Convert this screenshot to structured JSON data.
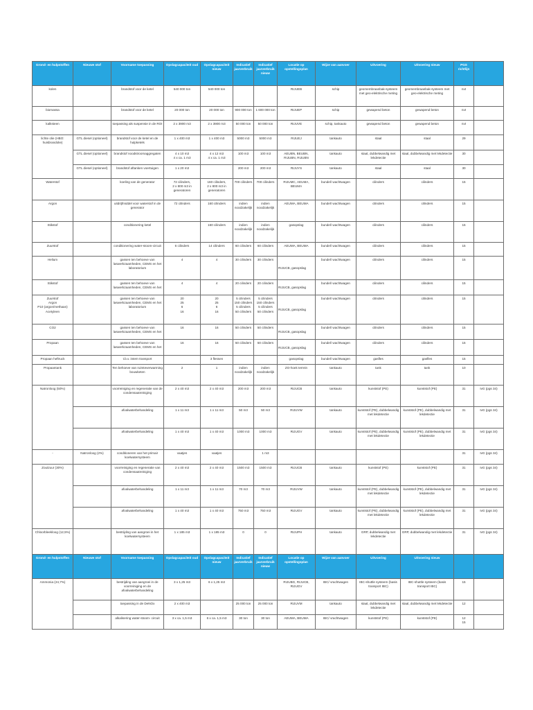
{
  "header": [
    "Grond- en hulpstoffen",
    "Nieuwe stof",
    "Voorname toepassing",
    "Opslagcapaciteit oud",
    "Opslagcapaciteit nieuw",
    "Indicatief jaarverbruik",
    "Indicatief jaarverbruik nieuw",
    "Locatie op opstellingsplan",
    "Wijze van aanvoer",
    "Uitvoering",
    "Uitvoering nieuw",
    "PGS richtlijn",
    ""
  ],
  "header2": [
    "Grond- en hulpstoffen",
    "Nieuwe stof",
    "Voorname toepassing",
    "Opslagcapaciteit oud",
    "Opslagcapaciteit nieuw",
    "Indicatief jaarverbruik",
    "Indicatief jaarverbruik nieuw",
    "Locatie op opstellingsplan",
    "Wijze van aanvoer",
    "Uitvoering",
    "Uitvoering nieuw",
    "",
    ""
  ],
  "header_color": "#27a6e0",
  "rows": [
    {
      "cells": [
        "kolen",
        "",
        "brandstof voor de ketel",
        "540 000 ton",
        "540 000 ton",
        "",
        "",
        "RIJUEB",
        "schip",
        "geomembraanbak-systeem met geo-elektrische meting",
        "geomembraanbak-systeem met geo-elektrische meting",
        "nvt",
        ""
      ]
    },
    {
      "cells": [
        "biomassa",
        "",
        "brandstof voor de ketel",
        "20 000 ton",
        "20 000 ton",
        "900 000 ton",
        "1 600 000 ton",
        "RIJUEP",
        "schip",
        "gewapend beton",
        "gewapend beton",
        "nvt",
        ""
      ]
    },
    {
      "cells": [
        "kalksteen",
        "",
        "toepassing als suspensie in de ROI",
        "2 x 3900 m3",
        "2 x 3900 m3",
        "50 000 ton",
        "50 000 ton",
        "RIJUVE",
        "schip, tankauto",
        "gewapend beton",
        "gewapend beton",
        "nvt",
        ""
      ]
    },
    {
      "cells": [
        "lichte olie (HBO: huisbrandolie)",
        "GTL diesel (optioneel)",
        "brandstof voor de ketel en de hulpketels",
        "1 x 400 m3",
        "1 x 400 m3",
        "5000 m3",
        "5000 m3",
        "RIJUEJ",
        "tankauto",
        "staal",
        "staal",
        "29",
        ""
      ]
    },
    {
      "cells": [
        null,
        "GTL diesel (optioneel)",
        "brandstof noodstroomaggregaten",
        "4 x 10 m3\n4 x ca. 1 m3",
        "4 x 12 m3\n4 x ca. 1 m3",
        "100 m3",
        "100 m3",
        "AEUBN, BEUBN, RIJUBN, RIJUBN",
        "tankauto",
        "staal, dubbelwandig met lekdetectie",
        "staal, dubbelwandig met lekdetectie",
        "30",
        ""
      ]
    },
    {
      "cells": [
        null,
        "GTL diesel (optioneel)",
        "brandstof aftanken voertuigen",
        "1 x 20 m3",
        "",
        "200 m3",
        "200 m3",
        "RIJUYS",
        "tankauto",
        "staal",
        "staal",
        "30",
        ""
      ]
    },
    {
      "cells": [
        "Waterstof",
        "",
        "koeling van de generator",
        "72 cilinders,\n2 x 800 m3 in generatoren",
        "160 cilinders,\n2 x 800 m3 in generatoren",
        "700 cilinders",
        "700 cilinders",
        "RIJUMC, AEUMA, BEUMA",
        "bundel/ wachtwagen",
        "cilinders",
        "cilinders",
        "15",
        ""
      ]
    },
    {
      "cells": [
        "Argon",
        "",
        "uitdrijfmiddel voor waterstof in de generator",
        "72 cilinders",
        "160 cilinders",
        "indien noodzakelijk",
        "indien noodzakelijk",
        "AEUMA, BEUMA",
        "bundel/ wachtwagen",
        "cilinders",
        "cilinders",
        "15",
        ""
      ]
    },
    {
      "cells": [
        "Stikstof",
        "",
        "conditionering ketel",
        "",
        "160 cilinders",
        "indien noodzakelijk",
        "indien noodzakelijk",
        "gasopslag",
        "bundel/ wachtwagen",
        "cilinders",
        "cilinders",
        "15",
        ""
      ]
    },
    {
      "cells": [
        "Zuurstof",
        "",
        "conditionering water-stoom-circuit",
        "6 cilinders",
        "14 cilinders",
        "60 cilinders",
        "60 cilinders",
        "AEUMA, BEUMA",
        "bundel/ wachtwagen",
        "cilinders",
        "cilinders",
        "15",
        ""
      ]
    },
    {
      "cells": [
        "Helium",
        "",
        "gassen ten behoeve van laswerkzaamheden, CEMS en het laboratorium",
        "4",
        "4",
        "30 cilinders",
        "30 cilinders",
        "RIJUCB, gasopslag",
        "bundel/ wachtwagen",
        "cilinders",
        "cilinders",
        "15",
        ""
      ]
    },
    {
      "cells": [
        "Stikstof",
        "",
        "gassen ten behoeve van laswerkzaamheden, CEMS en het",
        "4",
        "4",
        "20 cilinders",
        "20 cilinders",
        "RIJUCB, gasopslag",
        "bundel/ wachtwagen",
        "cilinders",
        "cilinders",
        "15",
        ""
      ]
    },
    {
      "cells": [
        "Zuurstof\nArgon\nP10 (argon/methaan)\nAcetyleen",
        "",
        "gassen ten behoeve van laswerkzaamheden, CEMS en het laboratorium",
        "20\n25\n6\n16",
        "20\n25\n6\n16",
        "5 cilinders\n150 cilinders\n5 cilinders\n50 cilinders",
        "5 cilinders\n150 cilinders\n5 cilinders\n50 cilinders",
        "RIJUCB, gasopslag",
        "bundel/ wachtwagen",
        "cilinders",
        "cilinders",
        "15",
        ""
      ]
    },
    {
      "cells": [
        "CO2",
        "",
        "gassen ten behoeve van laswerkzaamheden, CEMS en het",
        "16",
        "16",
        "50 cilinders",
        "50 cilinders",
        "RIJUCB, gasopslag",
        "bundel/ wachtwagen",
        "cilinders",
        "cilinders",
        "15",
        ""
      ]
    },
    {
      "cells": [
        "Propaan",
        "",
        "gassen ten behoeve van laswerkzaamheden, CEMS en het",
        "16",
        "16",
        "50 cilinders",
        "50 cilinders",
        "RIJUCB, gasopslag",
        "bundel/ wachtwagen",
        "cilinders",
        "cilinders",
        "15",
        ""
      ]
    },
    {
      "cells": [
        "Propaan heftruck",
        "",
        "t.b.v. intern transport",
        "",
        "3 flessen",
        "",
        "",
        "gasopslag",
        "bundel/ wachtwagen",
        "gasfles",
        "gasfles",
        "15",
        ""
      ]
    },
    {
      "cells": [
        "Propaantank",
        "",
        "Ten behoeve van ruimteverwarming bouwketen",
        "2",
        "1",
        "indien noodzakelijk",
        "indien noodzakelijk",
        "ZO-hoek terrein",
        "tankauto",
        "tank",
        "tank",
        "10",
        ""
      ]
    },
    {
      "cells": [
        "Natronloog (50%)",
        "",
        "voorreiniging en regeneratie van de condensaatreiniging",
        "2 x 40 m3",
        "2 x 40 m3",
        "200 m3",
        "200 m3",
        "RIJUCB",
        "tankauto",
        "kunststof (PE)",
        "kunststof (PE)",
        "31",
        "IvG (pgs 34)"
      ]
    },
    {
      "cells": [
        null,
        "",
        "afvalwaterbehandeling",
        "1 x 11 m3",
        "1 x 11 m3",
        "50 m3",
        "50 m3",
        "RIJUVW",
        "tankauto",
        "kunststof (PE), dubbelwandig met lekdetectie",
        "kunststof (PE), dubbelwandig met lekdetectie",
        "31",
        "IvG (pgs 34)"
      ]
    },
    {
      "cells": [
        null,
        "",
        "afvalwaterbehandeling",
        "1 x 40 m3",
        "1 x 40 m3",
        "1000 m3",
        "1000 m3",
        "RIJUGV",
        "tankauto",
        "kunststof (PE), dubbelwandig met lekdetectie",
        "kunststof (PE), dubbelwandig met lekdetectie",
        "31",
        "IvG (pgs 34)"
      ]
    },
    {
      "cells": [
        "-",
        "Natronloog (2%)",
        "conditioneren van het primair koelwatersysteem",
        "vaatjes",
        "vaatjes",
        "",
        "1 m3",
        "",
        "",
        "",
        "",
        "31",
        "IvG (pgs 34)"
      ]
    },
    {
      "cells": [
        "Zoutzuur (30%)",
        "",
        "voorreiniging en regeneratie van condensaatreiniging",
        "2 x 40 m3",
        "2 x 40 m3",
        "1500 m3",
        "1500 m3",
        "RIJUCB",
        "tankauto",
        "kunststof (PE)",
        "kunststof (PE)",
        "31",
        "IvG (pgs 34)"
      ]
    },
    {
      "cells": [
        null,
        "",
        "afvalwaterbehandeling",
        "1 x 11 m3",
        "1 x 11 m3",
        "70 m3",
        "70 m3",
        "RIJUVW",
        "tankauto",
        "kunststof (PE), dubbelwandig met lekdetectie",
        "kunststof (PE), dubbelwandig met lekdetectie",
        "31",
        "IvG (pgs 34)"
      ]
    },
    {
      "cells": [
        null,
        "",
        "afvalwaterbehandeling",
        "1 x 40 m3",
        "1 x 40 m3",
        "750 m3",
        "750 m3",
        "RIJUGV",
        "tankauto",
        "kunststof (PE), dubbelwandig met lekdetectie",
        "kunststof (PE), dubbelwandig met lekdetectie",
        "31",
        "IvG (pgs 34)"
      ]
    },
    {
      "cells": [
        "Chloorbleekloog (12,5%)",
        "",
        "bestrijding van aangroei in het koelwatersysteem",
        "1 x 185 m3",
        "1 x 185 m3",
        "0",
        "0",
        "RIJUPH",
        "tankauto",
        "GRP, dubbelwandig met lekdetectie",
        "GRP, dubbelwandig met lekdetectie",
        "31",
        "IvG (pgs 34)"
      ]
    },
    {
      "header": true
    },
    {
      "cells": [
        "Ammonia (24,7%)",
        "",
        "bestrijding van aangroei in de voorreiniging en de afvalwaterbehandeling",
        "3 x 1,25 m3",
        "6 x 1,25 m3",
        "",
        "",
        "RIJUBG, RIJUCB, RIJUGV",
        "IBC/ vrachtwagen",
        "IBC-shuttle systeem (basis transport IBC)",
        "IBC-shuttle systeem (basis transport IBC)",
        "15",
        ""
      ]
    },
    {
      "cells": [
        null,
        "",
        "toepassing in de DeNOx",
        "2 x 400 m3",
        "",
        "25 000 ton",
        "25 000 ton",
        "RIJUVM",
        "tankauto",
        "staal, dubbelwandig met lekdetectie",
        "staal, dubbelwandig met lekdetectie",
        "12",
        ""
      ]
    },
    {
      "cells": [
        null,
        "",
        "alkalisering water-stoom- circuit",
        "3 x ca. 1,5 m3",
        "6 x ca. 1,5 m3",
        "30 ton",
        "30 ton",
        "AEUMA, BEUMA",
        "IBC/ vrachtwagen",
        "kunststof (PE)",
        "kunststof (PE)",
        "12\n15",
        ""
      ]
    }
  ]
}
